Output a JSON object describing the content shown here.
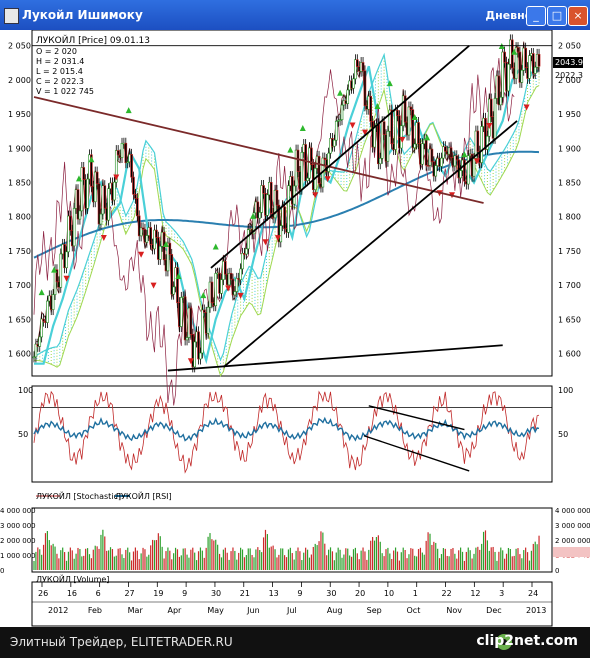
{
  "window": {
    "title": "Лукойл Ишимоку",
    "interval": "Дневной",
    "buttons": [
      "_",
      "□",
      "×"
    ]
  },
  "chart_data": [
    {
      "type": "candlestick",
      "legend": "ЛУКОЙЛ [Price] 09.01.13",
      "ohlc_readout": [
        "O = 2 020",
        "H = 2 031.4",
        "L = 2 015.4",
        "C = 2 022.3",
        "V = 1 022 745"
      ],
      "ylim": [
        1570,
        2070
      ],
      "y_ticks": [
        "2 050",
        "2 000",
        "1 950",
        "1 900",
        "1 850",
        "1 800",
        "1 750",
        "1 700",
        "1 650",
        "1 600"
      ],
      "last_price_label": "2043.94",
      "close_label": "2022.3",
      "colors": {
        "up": "#1c8a1c",
        "down": "#cc2222",
        "kumo": "#4ad0d8",
        "kijun": "#1f5f9f",
        "senkou": "#9fd84f",
        "tenkan": "#6b1f1f",
        "chikou": "#8b1f3f",
        "fractal_up": "#2db82d",
        "fractal_down": "#d81f1f",
        "trendline": "#000000",
        "downtrend": "#7b2a2a"
      },
      "series": [
        {
          "name": "price",
          "x": [
            0,
            10,
            20,
            30,
            40,
            50,
            60,
            70,
            80,
            90,
            100,
            110,
            120,
            130,
            140,
            150,
            160,
            170,
            180,
            190,
            200,
            210,
            220,
            230,
            240,
            250,
            260,
            270,
            280,
            290,
            300,
            310,
            320,
            330,
            340,
            350,
            360,
            370,
            380,
            390,
            400,
            410,
            420,
            430,
            440,
            450,
            460,
            470,
            480,
            490,
            500,
            510,
            520,
            529
          ],
          "y": [
            1595,
            1650,
            1690,
            1740,
            1790,
            1840,
            1860,
            1810,
            1830,
            1905,
            1880,
            1780,
            1770,
            1760,
            1740,
            1680,
            1640,
            1600,
            1660,
            1700,
            1720,
            1690,
            1750,
            1800,
            1830,
            1820,
            1780,
            1850,
            1880,
            1870,
            1860,
            1900,
            1950,
            1990,
            2030,
            1950,
            1900,
            1920,
            1930,
            1950,
            1910,
            1890,
            1870,
            1900,
            1880,
            1860,
            1890,
            1920,
            1950,
            2010,
            2030,
            2020,
            2025,
            2022
          ]
        }
      ],
      "downtrend_line": {
        "x": [
          0,
          470
        ],
        "y": [
          1975,
          1820
        ]
      },
      "channel": {
        "upper": {
          "x": [
            185,
            455
          ],
          "y": [
            1725,
            2050
          ]
        },
        "lower": {
          "x": [
            198,
            505
          ],
          "y": [
            1580,
            1940
          ]
        },
        "support": {
          "x": [
            140,
            490
          ],
          "y": [
            1575,
            1612
          ]
        }
      }
    },
    {
      "type": "line",
      "legend": [
        "ЛУКОЙЛ [Stochastic]",
        "ЛУКОЙЛ [RSI]"
      ],
      "ylim": [
        0,
        100
      ],
      "y_ticks_left": [
        "100",
        "50"
      ],
      "y_ticks_right": [
        "100",
        "50"
      ],
      "hline": 80,
      "series": [
        {
          "name": "ЛУКОЙЛ [Stochastic]",
          "color": "#c02828",
          "y": [
            40,
            90,
            95,
            60,
            20,
            30,
            70,
            95,
            85,
            40,
            15,
            25,
            60,
            90,
            75,
            30,
            10,
            40,
            85,
            95,
            80,
            40,
            20,
            50,
            90,
            85,
            50,
            20,
            30,
            70,
            95,
            90,
            60,
            20,
            15,
            50,
            85,
            95,
            70,
            30,
            20,
            45,
            80,
            90,
            55,
            25,
            35,
            75,
            95,
            85,
            40,
            20,
            60,
            70
          ]
        },
        {
          "name": "ЛУКОЙЛ [RSI]",
          "color": "#1f6f9f",
          "y": [
            50,
            60,
            62,
            55,
            48,
            50,
            58,
            64,
            60,
            52,
            45,
            47,
            55,
            62,
            58,
            50,
            44,
            50,
            60,
            64,
            60,
            52,
            47,
            52,
            61,
            60,
            53,
            46,
            49,
            58,
            66,
            63,
            56,
            47,
            45,
            52,
            60,
            64,
            58,
            50,
            47,
            51,
            59,
            62,
            55,
            48,
            50,
            57,
            63,
            60,
            52,
            48,
            56,
            55
          ]
        }
      ],
      "channel_lines": {
        "upper": {
          "x": [
            350,
            450
          ],
          "y": [
            82,
            55
          ]
        },
        "lower": {
          "x": [
            345,
            455
          ],
          "y": [
            48,
            8
          ]
        }
      }
    },
    {
      "type": "bar",
      "legend": "ЛУКОЙЛ [Volume]",
      "y_ticks_left": [
        "4 000 000",
        "3 000 000",
        "2 000 000",
        "1 000 000",
        "0"
      ],
      "y_ticks_right": [
        "4 000 000",
        "3 000 000",
        "2 000 000",
        "1 022 745",
        "0"
      ],
      "ylim": [
        0,
        4000000
      ],
      "colors": {
        "up": "#2da02d",
        "down": "#cc2a2a"
      },
      "last_volume": 1022745
    }
  ],
  "x_axis": {
    "days": [
      "26",
      "16",
      "6",
      "27",
      "19",
      "9",
      "30",
      "21",
      "13",
      "9",
      "30",
      "20",
      "10",
      "1",
      "22",
      "12",
      "3",
      "24"
    ],
    "months": [
      "2012",
      "Feb",
      "Mar",
      "Apr",
      "May",
      "Jun",
      "Jul",
      "Aug",
      "Sep",
      "Oct",
      "Nov",
      "Dec",
      "2013"
    ]
  },
  "footer": {
    "credit": "Элитный Трейдер, ELITETRADER.RU",
    "logo": "clip2net.com"
  }
}
